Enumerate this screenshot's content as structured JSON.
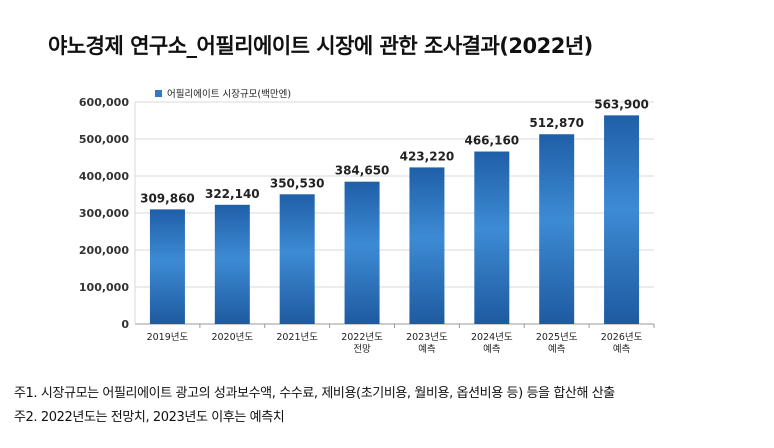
{
  "title": "야노경제 연구소_어필리에이트 시장에 관한 조사결과(2022년)",
  "colors": {
    "bar_top": "#1f5fa8",
    "bar_mid": "#3d8bd4",
    "bar_bottom": "#1e5aa0",
    "grid": "#d9d9d9",
    "axis": "#999999"
  },
  "chart_data": {
    "type": "bar",
    "title": "",
    "legend": "어필리에이트 시장규모(백만엔)",
    "legend_position": "top-left",
    "categories": [
      [
        "2019년도"
      ],
      [
        "2020년도"
      ],
      [
        "2021년도"
      ],
      [
        "2022년도",
        "전망"
      ],
      [
        "2023년도",
        "예측"
      ],
      [
        "2024년도",
        "예측"
      ],
      [
        "2025년도",
        "예측"
      ],
      [
        "2026년도",
        "예측"
      ]
    ],
    "values": [
      309860,
      322140,
      350530,
      384650,
      423220,
      466160,
      512870,
      563900
    ],
    "value_labels": [
      "309,860",
      "322,140",
      "350,530",
      "384,650",
      "423,220",
      "466,160",
      "512,870",
      "563,900"
    ],
    "ylim": [
      0,
      600000
    ],
    "yticks": [
      0,
      100000,
      200000,
      300000,
      400000,
      500000,
      600000
    ],
    "ytick_labels": [
      "0",
      "100,000",
      "200,000",
      "300,000",
      "400,000",
      "500,000",
      "600,000"
    ],
    "xlabel": "",
    "ylabel": "",
    "grid": true
  },
  "notes": [
    "주1. 시장규모는 어필리에이트 광고의 성과보수액, 수수료, 제비용(초기비용, 월비용, 옵션비용 등) 등을 합산해 산출",
    "주2. 2022년도는 전망치, 2023년도 이후는 예측치"
  ]
}
